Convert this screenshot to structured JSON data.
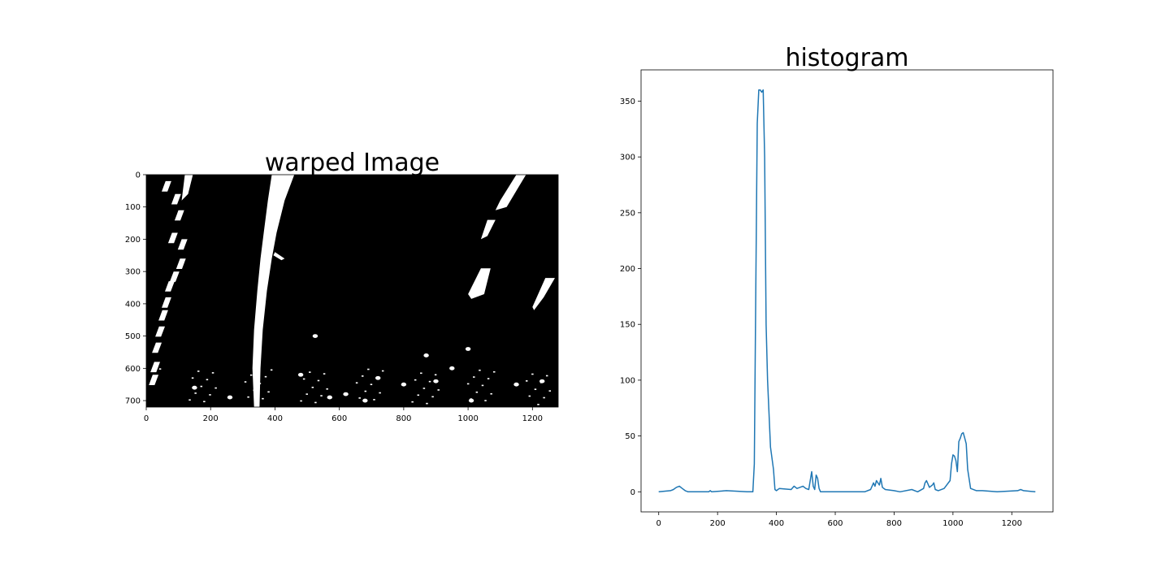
{
  "chart_data": [
    {
      "type": "image",
      "title": "warped Image",
      "image_size": [
        1280,
        720
      ],
      "x_ticks": [
        0,
        200,
        400,
        600,
        800,
        1000,
        1200
      ],
      "y_ticks": [
        0,
        100,
        200,
        300,
        400,
        500,
        600,
        700
      ],
      "xlim": [
        0,
        1280
      ],
      "ylim": [
        720,
        0
      ],
      "background_color": "#000000",
      "foreground_color": "#ffffff"
    },
    {
      "type": "line",
      "title": "histogram",
      "xlim": [
        -60,
        1340
      ],
      "ylim": [
        -18,
        378
      ],
      "x_ticks": [
        0,
        200,
        400,
        600,
        800,
        1000,
        1200
      ],
      "y_ticks": [
        0,
        50,
        100,
        150,
        200,
        250,
        300,
        350
      ],
      "grid": false,
      "series": [
        {
          "color": "#1f77b4",
          "x": [
            0,
            40,
            50,
            60,
            70,
            80,
            90,
            100,
            170,
            175,
            180,
            230,
            300,
            320,
            325,
            330,
            335,
            340,
            345,
            350,
            355,
            360,
            365,
            370,
            380,
            390,
            395,
            400,
            410,
            450,
            460,
            470,
            480,
            490,
            500,
            510,
            515,
            520,
            525,
            530,
            535,
            540,
            545,
            550,
            700,
            720,
            730,
            735,
            740,
            750,
            755,
            760,
            770,
            800,
            820,
            860,
            880,
            900,
            905,
            910,
            920,
            930,
            935,
            940,
            950,
            970,
            990,
            995,
            1000,
            1005,
            1010,
            1015,
            1020,
            1025,
            1030,
            1035,
            1040,
            1045,
            1050,
            1060,
            1080,
            1100,
            1150,
            1220,
            1230,
            1240,
            1280
          ],
          "y": [
            0,
            1,
            2,
            4,
            5,
            3,
            1,
            0,
            0,
            1,
            0,
            1,
            0,
            0,
            25,
            180,
            330,
            360,
            360,
            358,
            360,
            300,
            150,
            100,
            40,
            20,
            2,
            1,
            3,
            2,
            5,
            3,
            4,
            5,
            3,
            2,
            10,
            18,
            5,
            2,
            15,
            12,
            3,
            0,
            0,
            2,
            8,
            5,
            10,
            6,
            12,
            4,
            2,
            1,
            0,
            2,
            0,
            3,
            8,
            10,
            4,
            6,
            8,
            2,
            1,
            3,
            10,
            25,
            33,
            32,
            28,
            18,
            45,
            48,
            52,
            53,
            48,
            43,
            20,
            3,
            1,
            1,
            0,
            1,
            2,
            1,
            0
          ]
        }
      ]
    }
  ]
}
